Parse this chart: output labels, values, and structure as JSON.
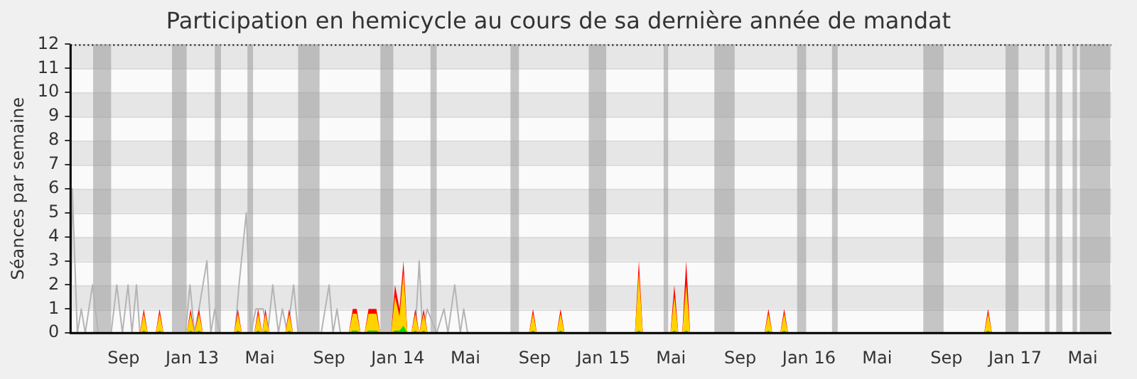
{
  "chart_data": {
    "type": "area",
    "title": "Participation en hemicycle au cours de sa dernière année de mandat",
    "ylabel": "Séances par semaine",
    "x": [
      "2012-05-30",
      "2012-09-30",
      "2012-10-07",
      "2012-10-14",
      "2012-10-28",
      "2012-11-04",
      "2012-11-11",
      "2012-12-22",
      "2012-12-29",
      "2013-01-05",
      "2013-01-13",
      "2013-01-20",
      "2013-03-16",
      "2013-03-23",
      "2013-03-30",
      "2013-04-21",
      "2013-04-28",
      "2013-05-05",
      "2013-05-11",
      "2013-05-18",
      "2013-06-15",
      "2013-06-22",
      "2013-06-29",
      "2013-10-06",
      "2013-10-13",
      "2013-10-20",
      "2013-10-27",
      "2013-11-03",
      "2013-11-10",
      "2013-11-17",
      "2013-11-24",
      "2013-12-01",
      "2013-12-20",
      "2013-12-27",
      "2014-01-04",
      "2014-01-11",
      "2014-01-18",
      "2014-01-25",
      "2014-02-01",
      "2014-02-08",
      "2014-02-16",
      "2014-02-23",
      "2014-08-22",
      "2014-08-29",
      "2014-09-05",
      "2014-10-10",
      "2014-10-17",
      "2014-10-24",
      "2015-02-26",
      "2015-03-05",
      "2015-03-12",
      "2015-04-30",
      "2015-05-07",
      "2015-05-14",
      "2015-05-21",
      "2015-05-28",
      "2015-06-04",
      "2015-10-14",
      "2015-10-21",
      "2015-10-28",
      "2015-11-11",
      "2015-11-18",
      "2015-11-25",
      "2016-11-07",
      "2016-11-14",
      "2016-11-21",
      "2017-06-21"
    ],
    "series": [
      {
        "type": "line",
        "color": "#b4b4b4",
        "x": [
          "2012-05-30",
          "2012-06-02",
          "2012-06-11",
          "2012-06-18",
          "2012-06-25",
          "2012-07-08",
          "2012-07-18",
          "2012-08-10",
          "2012-08-20",
          "2012-08-30",
          "2012-09-09",
          "2012-09-16",
          "2012-09-24",
          "2012-09-30",
          "2012-12-20",
          "2012-12-28",
          "2013-01-05",
          "2013-01-13",
          "2013-01-27",
          "2013-02-03",
          "2013-02-10",
          "2013-02-19",
          "2013-03-18",
          "2013-03-25",
          "2013-04-07",
          "2013-04-15",
          "2013-04-24",
          "2013-05-07",
          "2013-05-15",
          "2013-05-24",
          "2013-06-03",
          "2013-06-10",
          "2013-06-19",
          "2013-06-30",
          "2013-07-08",
          "2013-08-18",
          "2013-09-01",
          "2013-09-08",
          "2013-09-15",
          "2013-09-21",
          "2014-02-01",
          "2014-02-08",
          "2014-02-14",
          "2014-02-22",
          "2014-03-11",
          "2014-03-24",
          "2014-03-31",
          "2014-04-12",
          "2014-04-22",
          "2014-04-28",
          "2014-05-05"
        ],
        "values": [
          0,
          6,
          0,
          1,
          0,
          2,
          0,
          0,
          2,
          0,
          2,
          0,
          2,
          0,
          0,
          2,
          0,
          1,
          3,
          0,
          1,
          0,
          0,
          2,
          5,
          0,
          1,
          1,
          0,
          2,
          0,
          1,
          0,
          2,
          0,
          0,
          2,
          0,
          1,
          0,
          0,
          3,
          0,
          1,
          0,
          1,
          0,
          2,
          0,
          1,
          0
        ]
      },
      {
        "color": "#ff0000",
        "values": [
          0,
          0,
          1,
          0,
          0,
          1,
          0,
          0,
          1,
          0,
          1,
          0,
          0,
          1,
          0,
          0,
          1,
          0,
          1,
          0,
          0,
          1,
          0,
          0,
          1,
          1,
          0,
          0,
          1,
          1,
          1,
          0,
          0,
          2,
          1,
          3,
          0,
          0,
          1,
          0,
          1,
          0,
          0,
          1,
          0,
          0,
          1,
          0,
          0,
          3,
          0,
          0,
          2,
          0,
          0,
          3,
          0,
          0,
          1,
          0,
          0,
          1,
          0,
          0,
          1,
          0,
          0
        ]
      },
      {
        "color": "#ffd200",
        "values": [
          0,
          0,
          0.8,
          0,
          0,
          0.8,
          0,
          0,
          0.8,
          0,
          0.8,
          0,
          0,
          0.8,
          0,
          0,
          0.8,
          0,
          0.8,
          0,
          0,
          0.8,
          0,
          0,
          0.8,
          0.8,
          0,
          0,
          0.8,
          0.8,
          0.8,
          0,
          0,
          1.5,
          0.7,
          2.5,
          0,
          0,
          0.8,
          0,
          0.8,
          0,
          0,
          0.8,
          0,
          0,
          0.8,
          0,
          0,
          2.5,
          0,
          0,
          1.5,
          0,
          0,
          2,
          0,
          0,
          0.8,
          0,
          0,
          0.8,
          0,
          0,
          0.8,
          0,
          0
        ]
      },
      {
        "color": "#00e000",
        "values": [
          0,
          0,
          0.1,
          0,
          0,
          0.1,
          0,
          0,
          0.1,
          0,
          0.1,
          0,
          0,
          0.1,
          0,
          0,
          0.1,
          0,
          0.1,
          0,
          0,
          0.1,
          0,
          0,
          0.1,
          0.1,
          0,
          0,
          0.1,
          0.1,
          0.1,
          0,
          0,
          0.1,
          0.1,
          0.3,
          0,
          0,
          0.1,
          0,
          0.1,
          0,
          0,
          0.1,
          0,
          0,
          0.1,
          0,
          0,
          0.1,
          0,
          0,
          0.1,
          0,
          0,
          0.1,
          0,
          0,
          0.1,
          0,
          0,
          0.1,
          0,
          0,
          0.1,
          0,
          0
        ]
      }
    ],
    "xlim": [
      "2012-05-30",
      "2017-06-21"
    ],
    "xticks": [
      {
        "value": "2012-09-01",
        "label": "Sep"
      },
      {
        "value": "2013-01-01",
        "label": "Jan 13"
      },
      {
        "value": "2013-05-01",
        "label": "Mai"
      },
      {
        "value": "2013-09-01",
        "label": "Sep"
      },
      {
        "value": "2014-01-01",
        "label": "Jan 14"
      },
      {
        "value": "2014-05-01",
        "label": "Mai"
      },
      {
        "value": "2014-09-01",
        "label": "Sep"
      },
      {
        "value": "2015-01-01",
        "label": "Jan 15"
      },
      {
        "value": "2015-05-01",
        "label": "Mai"
      },
      {
        "value": "2015-09-01",
        "label": "Sep"
      },
      {
        "value": "2016-01-01",
        "label": "Jan 16"
      },
      {
        "value": "2016-05-01",
        "label": "Mai"
      },
      {
        "value": "2016-09-01",
        "label": "Sep"
      },
      {
        "value": "2017-01-01",
        "label": "Jan 17"
      },
      {
        "value": "2017-05-01",
        "label": "Mai"
      }
    ],
    "ylim": [
      0,
      12
    ],
    "yticks": [
      0,
      1,
      2,
      3,
      4,
      5,
      6,
      7,
      8,
      9,
      10,
      11,
      12
    ],
    "grid": "y",
    "bands": [
      {
        "axis": "x",
        "from": "2012-07-09",
        "to": "2012-08-10",
        "color": "#999999"
      },
      {
        "axis": "x",
        "from": "2012-11-26",
        "to": "2012-12-22",
        "color": "#999999"
      },
      {
        "axis": "x",
        "from": "2013-02-10",
        "to": "2013-02-21",
        "color": "#999999"
      },
      {
        "axis": "x",
        "from": "2013-04-09",
        "to": "2013-04-19",
        "color": "#999999"
      },
      {
        "axis": "x",
        "from": "2013-07-08",
        "to": "2013-08-15",
        "color": "#999999"
      },
      {
        "axis": "x",
        "from": "2013-12-01",
        "to": "2013-12-24",
        "color": "#999999"
      },
      {
        "axis": "x",
        "from": "2014-02-28",
        "to": "2014-03-11",
        "color": "#999999"
      },
      {
        "axis": "x",
        "from": "2014-07-20",
        "to": "2014-08-04",
        "color": "#999999"
      },
      {
        "axis": "x",
        "from": "2014-12-06",
        "to": "2015-01-06",
        "color": "#999999"
      },
      {
        "axis": "x",
        "from": "2015-04-18",
        "to": "2015-04-26",
        "color": "#999999"
      },
      {
        "axis": "x",
        "from": "2015-07-17",
        "to": "2015-08-22",
        "color": "#999999"
      },
      {
        "axis": "x",
        "from": "2015-12-11",
        "to": "2015-12-27",
        "color": "#999999"
      },
      {
        "axis": "x",
        "from": "2016-02-11",
        "to": "2016-02-21",
        "color": "#999999"
      },
      {
        "axis": "x",
        "from": "2016-07-22",
        "to": "2016-08-27",
        "color": "#999999"
      },
      {
        "axis": "x",
        "from": "2016-12-15",
        "to": "2017-01-07",
        "color": "#999999"
      },
      {
        "axis": "x",
        "from": "2017-02-23",
        "to": "2017-03-03",
        "color": "#999999"
      },
      {
        "axis": "x",
        "from": "2017-03-15",
        "to": "2017-03-26",
        "color": "#999999"
      },
      {
        "axis": "x",
        "from": "2017-04-13",
        "to": "2017-04-21",
        "color": "#999999"
      },
      {
        "axis": "x",
        "from": "2017-04-26",
        "to": "2017-06-19",
        "color": "#999999"
      }
    ]
  }
}
